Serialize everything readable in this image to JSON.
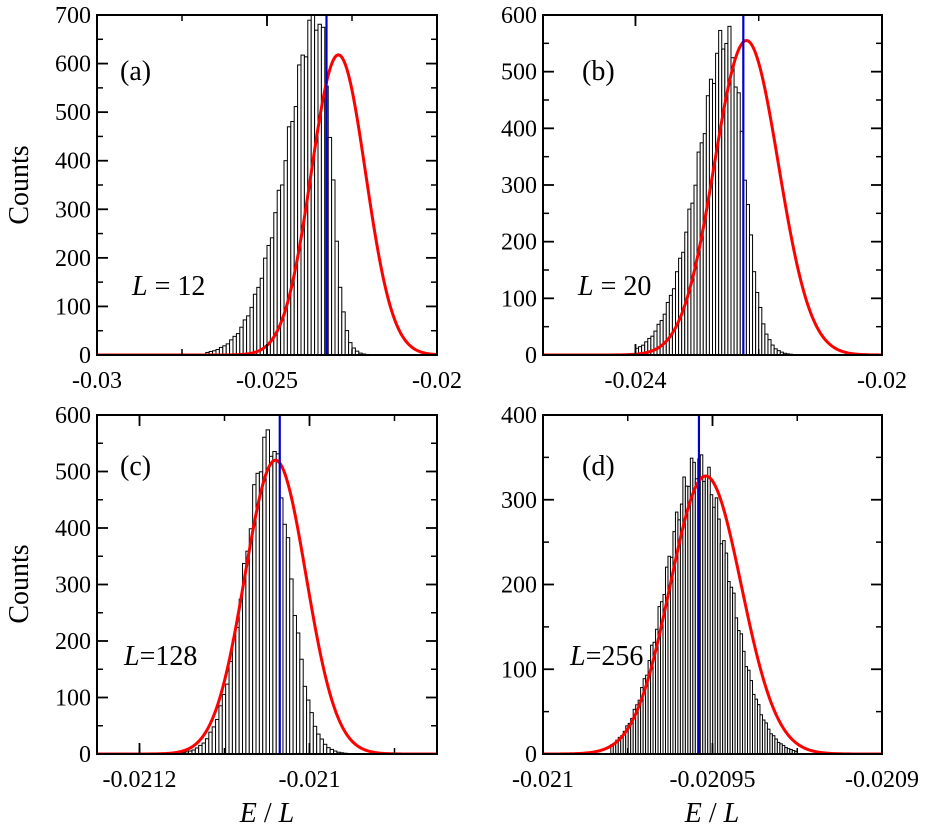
{
  "chart_data": [
    {
      "type": "bar",
      "panel_label": "(a)",
      "annotation": {
        "var": "L",
        "op": " = ",
        "value": "12"
      },
      "ylabel": "Counts",
      "xlabel": "",
      "xlim": [
        -0.03,
        -0.02
      ],
      "ylim": [
        0,
        700
      ],
      "xticks": [
        -0.03,
        -0.025,
        -0.02
      ],
      "xtick_labels": [
        "-0.03",
        "-0.025",
        "-0.02"
      ],
      "yticks": [
        0,
        100,
        200,
        300,
        400,
        500,
        600,
        700
      ],
      "ytick_labels": [
        "0",
        "100",
        "200",
        "300",
        "400",
        "500",
        "600",
        "700"
      ],
      "vline_x": -0.02325,
      "vline_color": "#0000cc",
      "fit_color": "#ff0000",
      "histogram": {
        "center": -0.0231,
        "sigma": 0.00115,
        "skew": -4,
        "peak": 700,
        "range": [
          -0.0268,
          -0.0205
        ],
        "bins": 63
      },
      "fit": {
        "center": -0.0229,
        "sigma": 0.0008,
        "amplitude": 618,
        "range": [
          -0.03,
          -0.02
        ]
      }
    },
    {
      "type": "bar",
      "panel_label": "(b)",
      "annotation": {
        "var": "L",
        "op": " = ",
        "value": "20"
      },
      "ylabel": "",
      "xlabel": "",
      "xlim": [
        -0.0255,
        -0.02
      ],
      "ylim": [
        0,
        600
      ],
      "xticks": [
        -0.024,
        -0.02
      ],
      "xtick_labels": [
        "-0.024",
        "-0.02"
      ],
      "yticks": [
        0,
        100,
        200,
        300,
        400,
        500,
        600
      ],
      "ytick_labels": [
        "0",
        "100",
        "200",
        "300",
        "400",
        "500",
        "600"
      ],
      "vline_x": -0.02225,
      "vline_color": "#0000cc",
      "fit_color": "#ff0000",
      "histogram": {
        "center": -0.02225,
        "sigma": 0.0006,
        "skew": -2.5,
        "peak": 562,
        "range": [
          -0.024,
          -0.0208
        ],
        "bins": 64
      },
      "fit": {
        "center": -0.0222,
        "sigma": 0.00052,
        "amplitude": 555,
        "range": [
          -0.0255,
          -0.02
        ]
      }
    },
    {
      "type": "bar",
      "panel_label": "(c)",
      "annotation": {
        "var": "L",
        "op": "=",
        "value": "128"
      },
      "ylabel": "Counts",
      "xlabel": "E / L",
      "xlim": [
        -0.02125,
        -0.02085
      ],
      "ylim": [
        0,
        600
      ],
      "xticks": [
        -0.0212,
        -0.021
      ],
      "xtick_labels": [
        "-0.0212",
        "-0.021"
      ],
      "yticks": [
        0,
        100,
        200,
        300,
        400,
        500,
        600
      ],
      "ytick_labels": [
        "0",
        "100",
        "200",
        "300",
        "400",
        "500",
        "600"
      ],
      "vline_x": -0.021035,
      "vline_color": "#0000cc",
      "fit_color": "#ff0000",
      "histogram": {
        "center": -0.02103,
        "sigma": 3.45e-05,
        "skew": -1.2,
        "peak": 556,
        "range": [
          -0.02117,
          -0.02094
        ],
        "bins": 58
      },
      "fit": {
        "center": -0.02104,
        "sigma": 3.6e-05,
        "amplitude": 520,
        "range": [
          -0.02125,
          -0.02085
        ]
      }
    },
    {
      "type": "bar",
      "panel_label": "(d)",
      "annotation": {
        "var": "L",
        "op": "=",
        "value": "256"
      },
      "ylabel": "",
      "xlabel": "E / L",
      "xlim": [
        -0.021,
        -0.0209
      ],
      "ylim": [
        0,
        400
      ],
      "xticks": [
        -0.021,
        -0.02095,
        -0.0209
      ],
      "xtick_labels": [
        "-0.021",
        "-0.02095",
        "-0.0209"
      ],
      "yticks": [
        0,
        100,
        200,
        300,
        400
      ],
      "ytick_labels": [
        "0",
        "100",
        "200",
        "300",
        "400"
      ],
      "vline_x": -0.020954,
      "vline_color": "#0000cc",
      "fit_color": "#ff0000",
      "histogram": {
        "center": -0.02095,
        "sigma": 1.05e-05,
        "skew": -0.6,
        "peak": 342,
        "range": [
          -0.02098,
          -0.020925
        ],
        "bins": 75
      },
      "fit": {
        "center": -0.020952,
        "sigma": 1.05e-05,
        "amplitude": 328,
        "range": [
          -0.021,
          -0.0209
        ]
      }
    }
  ]
}
